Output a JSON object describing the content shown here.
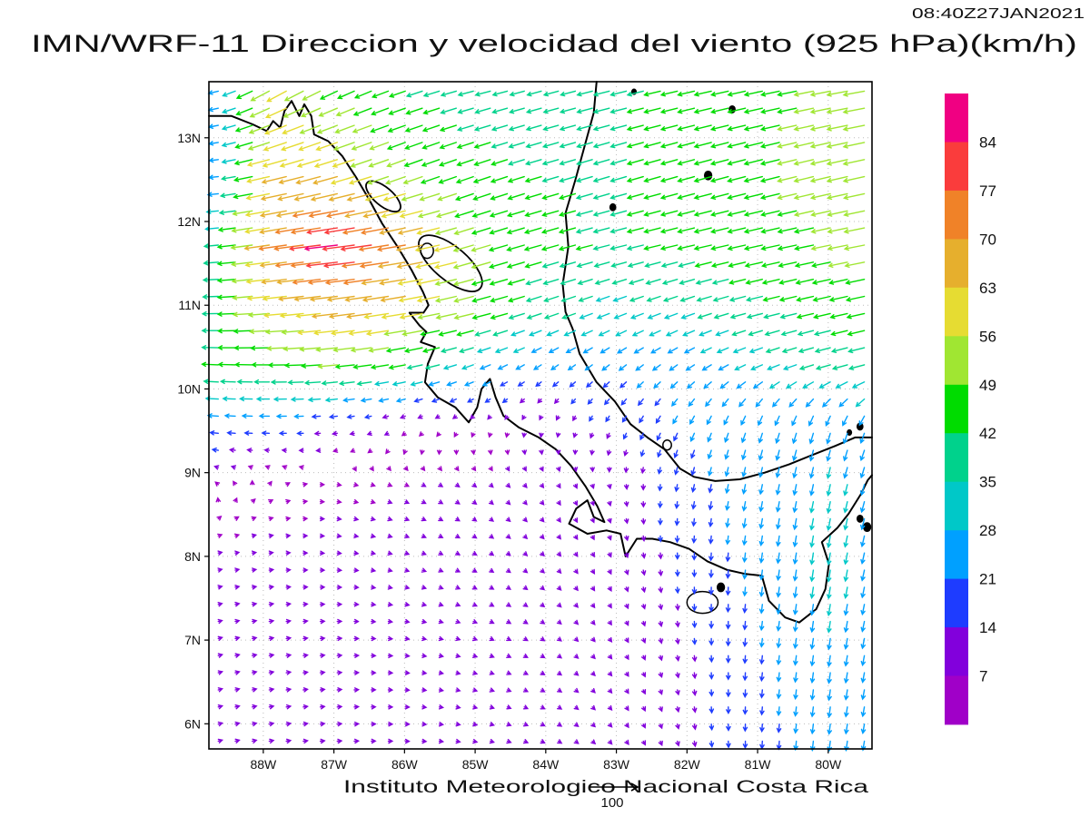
{
  "header": {
    "title": "IMN/WRF-11 Direccion y velocidad del viento (925 hPa)(km/h)",
    "timestamp": "08:40Z27JAN2021"
  },
  "footer": {
    "credit": "Instituto Meteorologico Nacional Costa Rica",
    "reference_vector_label": "100"
  },
  "chart_data": {
    "type": "vector_field_map",
    "title": "IMN/WRF-11 Direccion y velocidad del viento (925 hPa)(km/h)",
    "model": "IMN/WRF-11",
    "variable": "Direccion y velocidad del viento",
    "level": "925 hPa",
    "units": "km/h",
    "valid_time": "08:40Z27JAN2021",
    "source": "Instituto Meteorologico Nacional Costa Rica",
    "reference_vector": {
      "label": "100",
      "value_kmh": 100
    },
    "x_axis": {
      "tick_labels": [
        "88W",
        "87W",
        "86W",
        "85W",
        "84W",
        "83W",
        "82W",
        "81W",
        "80W"
      ],
      "tick_lons": [
        -88,
        -87,
        -86,
        -85,
        -84,
        -83,
        -82,
        -81,
        -80
      ],
      "lon_min": -88.77,
      "lon_max": -79.38
    },
    "y_axis": {
      "tick_labels": [
        "6N",
        "7N",
        "8N",
        "9N",
        "10N",
        "11N",
        "12N",
        "13N"
      ],
      "tick_lats": [
        6,
        7,
        8,
        9,
        10,
        11,
        12,
        13
      ],
      "lat_min": 5.7,
      "lat_max": 13.67
    },
    "colorbar": {
      "levels": [
        7,
        14,
        21,
        28,
        35,
        42,
        49,
        56,
        63,
        70,
        77,
        84
      ],
      "colors_low_to_high": [
        "#a000c8",
        "#8200dc",
        "#1e3cff",
        "#00a0ff",
        "#00c8c8",
        "#00d28c",
        "#00dc00",
        "#a0e632",
        "#e6dc32",
        "#e6af2d",
        "#f08228",
        "#fa3c3c",
        "#f00082"
      ]
    },
    "wind_field": {
      "lats": [
        5.7,
        6.8,
        8.0,
        8.9,
        9.6,
        10.3,
        10.9,
        11.7,
        12.6,
        13.6
      ],
      "lons": [
        -88.8,
        -87.8,
        -86.9,
        -86.0,
        -85.0,
        -84.0,
        -83.0,
        -82.0,
        -81.0,
        -80.0,
        -79.3
      ],
      "u_kmh": [
        [
          10,
          11,
          11,
          10,
          9,
          8,
          6,
          3,
          -1,
          -3,
          -4
        ],
        [
          10,
          11,
          11,
          10,
          9,
          8,
          6,
          2,
          -2,
          -4,
          -5
        ],
        [
          9,
          10,
          10,
          9,
          8,
          7,
          4,
          0,
          -3,
          -5,
          -6
        ],
        [
          -5,
          2,
          5,
          6,
          6,
          5,
          2,
          -4,
          -5,
          -6,
          -8
        ],
        [
          -25,
          -22,
          -15,
          -8,
          -4,
          -2,
          -8,
          -10,
          -8,
          -8,
          -10
        ],
        [
          -42,
          -45,
          -50,
          -42,
          -28,
          -18,
          -18,
          -20,
          -28,
          -36,
          -40
        ],
        [
          -38,
          -55,
          -65,
          -60,
          -48,
          -35,
          -30,
          -32,
          -38,
          -42,
          -45
        ],
        [
          -30,
          -68,
          -85,
          -72,
          -50,
          -42,
          -40,
          -42,
          -45,
          -48,
          -52
        ],
        [
          -15,
          -62,
          -60,
          -48,
          -42,
          -40,
          -40,
          -42,
          -46,
          -50,
          -55
        ],
        [
          -20,
          -50,
          -42,
          -40,
          -38,
          -36,
          -40,
          -42,
          -45,
          -50,
          -55
        ]
      ],
      "v_kmh": [
        [
          3,
          2,
          1,
          0,
          -2,
          -4,
          -7,
          -12,
          -18,
          -25,
          -22
        ],
        [
          3,
          2,
          1,
          -1,
          -3,
          -5,
          -8,
          -13,
          -20,
          -27,
          -24
        ],
        [
          2,
          1,
          -1,
          -3,
          -5,
          -7,
          -10,
          -16,
          -24,
          -30,
          -26
        ],
        [
          3,
          2,
          -1,
          -3,
          -5,
          -7,
          -10,
          -18,
          -24,
          -28,
          -26
        ],
        [
          2,
          0,
          -2,
          -4,
          -6,
          -8,
          -14,
          -20,
          -24,
          -26,
          -24
        ],
        [
          2,
          0,
          -5,
          -8,
          -10,
          -12,
          -14,
          -14,
          -12,
          -10,
          -10
        ],
        [
          0,
          -5,
          -8,
          -10,
          -12,
          -12,
          -12,
          -12,
          -10,
          -10,
          -10
        ],
        [
          -2,
          -10,
          -10,
          -12,
          -15,
          -12,
          -10,
          -10,
          -10,
          -10,
          -10
        ],
        [
          0,
          -15,
          -18,
          -18,
          -15,
          -12,
          -12,
          -12,
          -12,
          -12,
          -12
        ],
        [
          -2,
          -28,
          -20,
          -14,
          -10,
          -10,
          -10,
          -10,
          -10,
          -10,
          -10
        ]
      ]
    },
    "coastline_segments": [
      [
        [
          -88.77,
          13.26
        ],
        [
          -88.45,
          13.26
        ],
        [
          -88.15,
          13.16
        ],
        [
          -87.95,
          13.08
        ],
        [
          -87.86,
          13.2
        ],
        [
          -87.76,
          13.12
        ],
        [
          -87.7,
          13.32
        ],
        [
          -87.6,
          13.44
        ],
        [
          -87.49,
          13.26
        ],
        [
          -87.42,
          13.4
        ],
        [
          -87.32,
          13.26
        ],
        [
          -87.28,
          13.04
        ],
        [
          -87.08,
          12.96
        ],
        [
          -86.88,
          12.78
        ],
        [
          -86.68,
          12.52
        ],
        [
          -86.5,
          12.26
        ],
        [
          -86.32,
          11.98
        ],
        [
          -86.1,
          11.7
        ],
        [
          -85.9,
          11.42
        ],
        [
          -85.74,
          11.16
        ],
        [
          -85.66,
          11.0
        ],
        [
          -85.73,
          10.91
        ],
        [
          -85.93,
          10.91
        ],
        [
          -85.79,
          10.76
        ],
        [
          -85.69,
          10.68
        ],
        [
          -85.77,
          10.56
        ],
        [
          -85.57,
          10.5
        ],
        [
          -85.67,
          10.3
        ],
        [
          -85.71,
          10.08
        ],
        [
          -85.53,
          9.9
        ],
        [
          -85.28,
          9.78
        ],
        [
          -85.09,
          9.6
        ],
        [
          -84.97,
          9.78
        ],
        [
          -84.91,
          10.0
        ],
        [
          -84.79,
          10.12
        ],
        [
          -84.71,
          9.9
        ],
        [
          -84.6,
          9.68
        ],
        [
          -84.38,
          9.54
        ],
        [
          -84.1,
          9.42
        ],
        [
          -83.86,
          9.28
        ],
        [
          -83.64,
          9.08
        ],
        [
          -83.44,
          8.84
        ],
        [
          -83.27,
          8.6
        ],
        [
          -83.17,
          8.41
        ],
        [
          -83.32,
          8.47
        ],
        [
          -83.41,
          8.67
        ],
        [
          -83.57,
          8.57
        ],
        [
          -83.67,
          8.39
        ],
        [
          -83.41,
          8.27
        ],
        [
          -83.14,
          8.31
        ],
        [
          -82.94,
          8.27
        ],
        [
          -82.87,
          8.0
        ],
        [
          -82.71,
          8.21
        ],
        [
          -82.49,
          8.21
        ],
        [
          -82.24,
          8.17
        ],
        [
          -81.97,
          8.09
        ],
        [
          -81.71,
          7.94
        ],
        [
          -81.44,
          7.84
        ],
        [
          -81.17,
          7.79
        ],
        [
          -80.94,
          7.77
        ],
        [
          -80.84,
          7.47
        ],
        [
          -80.61,
          7.27
        ],
        [
          -80.41,
          7.21
        ],
        [
          -80.17,
          7.37
        ],
        [
          -80.04,
          7.61
        ],
        [
          -79.99,
          7.91
        ],
        [
          -80.09,
          8.17
        ],
        [
          -79.87,
          8.34
        ],
        [
          -79.71,
          8.51
        ],
        [
          -79.54,
          8.74
        ],
        [
          -79.44,
          8.91
        ],
        [
          -79.38,
          8.97
        ]
      ],
      [
        [
          -79.38,
          9.42
        ],
        [
          -79.62,
          9.42
        ],
        [
          -79.9,
          9.32
        ],
        [
          -80.2,
          9.22
        ],
        [
          -80.55,
          9.1
        ],
        [
          -80.9,
          9.0
        ],
        [
          -81.25,
          8.92
        ],
        [
          -81.6,
          8.9
        ],
        [
          -81.9,
          8.95
        ],
        [
          -82.1,
          9.05
        ],
        [
          -82.32,
          9.28
        ],
        [
          -82.56,
          9.42
        ],
        [
          -82.8,
          9.58
        ],
        [
          -83.02,
          9.85
        ],
        [
          -83.28,
          10.08
        ],
        [
          -83.52,
          10.42
        ],
        [
          -83.62,
          10.72
        ],
        [
          -83.72,
          10.92
        ],
        [
          -83.76,
          11.25
        ],
        [
          -83.68,
          11.7
        ],
        [
          -83.72,
          12.1
        ],
        [
          -83.58,
          12.5
        ],
        [
          -83.45,
          12.9
        ],
        [
          -83.32,
          13.3
        ],
        [
          -83.28,
          13.67
        ]
      ]
    ],
    "lakes": [
      {
        "lon": -85.35,
        "lat": 11.5,
        "rx": 0.55,
        "ry": 0.2,
        "rot": 40
      },
      {
        "lon": -86.3,
        "lat": 12.3,
        "rx": 0.3,
        "ry": 0.11,
        "rot": 40
      }
    ],
    "islands": [
      {
        "lon": -85.68,
        "lat": 11.65,
        "r": 0.09,
        "outline": true
      },
      {
        "lon": -83.05,
        "lat": 12.17,
        "r": 0.04,
        "outline": false
      },
      {
        "lon": -81.7,
        "lat": 12.55,
        "r": 0.05,
        "outline": false
      },
      {
        "lon": -81.36,
        "lat": 13.34,
        "r": 0.04,
        "outline": false
      },
      {
        "lon": -82.75,
        "lat": 13.55,
        "r": 0.03,
        "outline": false
      },
      {
        "lon": -82.28,
        "lat": 9.33,
        "r": 0.06,
        "outline": true
      },
      {
        "lon": -81.78,
        "lat": 7.45,
        "rx": 0.22,
        "ry": 0.13,
        "outline": true
      },
      {
        "lon": -81.52,
        "lat": 7.63,
        "r": 0.05,
        "outline": false
      },
      {
        "lon": -79.55,
        "lat": 9.55,
        "r": 0.04,
        "outline": false
      },
      {
        "lon": -79.7,
        "lat": 9.48,
        "r": 0.03,
        "outline": false
      },
      {
        "lon": -79.45,
        "lat": 8.35,
        "r": 0.05,
        "outline": false
      },
      {
        "lon": -79.55,
        "lat": 8.45,
        "r": 0.04,
        "outline": false
      }
    ]
  }
}
